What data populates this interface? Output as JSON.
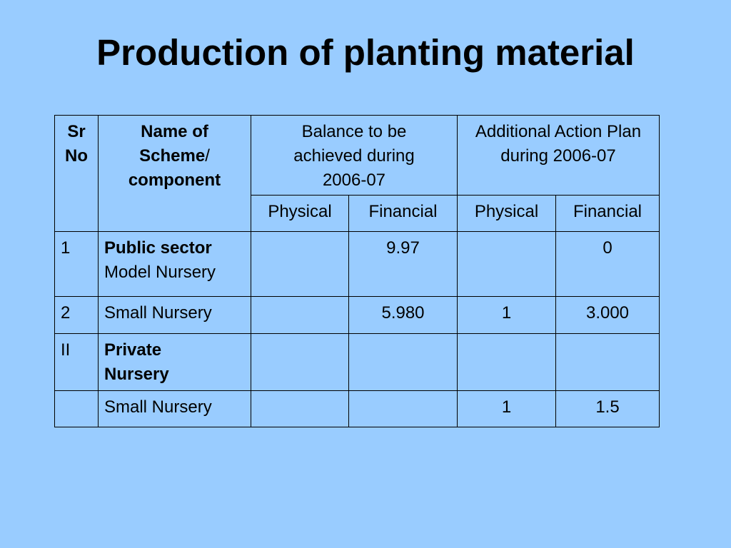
{
  "slide": {
    "title": "Production of planting material"
  },
  "table": {
    "header": {
      "sr_no_line1": "Sr",
      "sr_no_line2": "No",
      "scheme_line1": "Name of",
      "scheme_line2": "Scheme",
      "scheme_slash": "/",
      "scheme_line3": "component",
      "balance_group": "Balance to be achieved during 2006-07",
      "additional_group": "Additional Action Plan during 2006-07",
      "sub": [
        "Physical",
        "Financial",
        "Physical",
        "Financial"
      ]
    },
    "rows": [
      {
        "sr": "1",
        "name_bold": "Public sector",
        "name_rest": "Model Nursery",
        "bal_physical": "",
        "bal_financial": "9.97",
        "add_physical": "",
        "add_financial": "0"
      },
      {
        "sr": "2",
        "name": "Small Nursery",
        "bal_physical": "",
        "bal_financial": "5.980",
        "add_physical": "1",
        "add_financial": "3.000"
      },
      {
        "sr": "II",
        "name_bold": "Private Nursery",
        "bal_physical": "",
        "bal_financial": "",
        "add_physical": "",
        "add_financial": ""
      },
      {
        "sr": "",
        "name": "Small Nursery",
        "bal_physical": "",
        "bal_financial": "",
        "add_physical": "1",
        "add_financial": "1.5"
      }
    ]
  }
}
